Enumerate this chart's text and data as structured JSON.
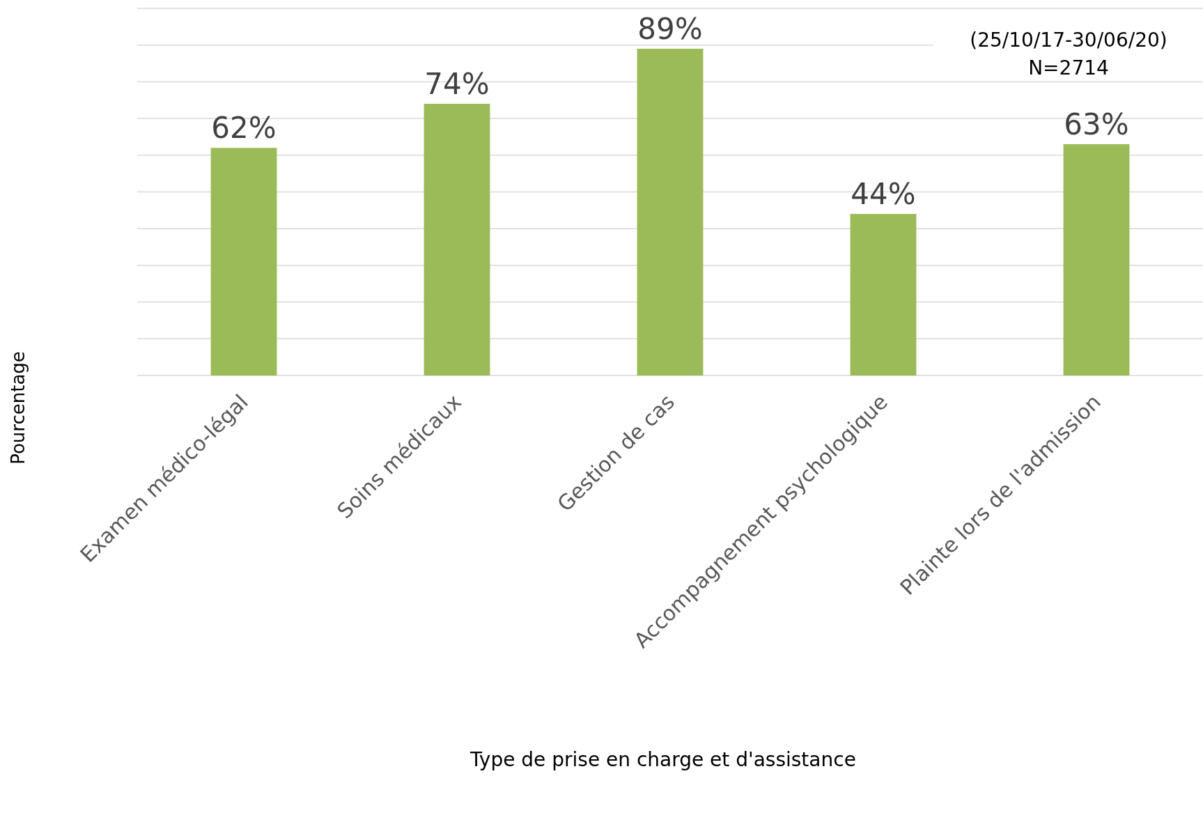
{
  "chart_data": {
    "type": "bar",
    "xlabel": "Type de prise en charge et d'assistance",
    "ylabel": "Pourcentage",
    "categories": [
      "Examen médico-légal",
      "Soins médicaux",
      "Gestion de cas",
      "Accompagnement psychologique",
      "Plainte lors de l'admission"
    ],
    "values": [
      62,
      74,
      89,
      44,
      63
    ],
    "value_labels": [
      "62%",
      "74%",
      "89%",
      "44%",
      "63%"
    ],
    "color": "#9bbb59",
    "ylim": [
      0,
      100
    ],
    "yticks": [
      {
        "value": 0,
        "label": null
      },
      {
        "value": 10,
        "label": null
      },
      {
        "value": 20,
        "label": null
      },
      {
        "value": 30,
        "label": null
      },
      {
        "value": 40,
        "label": null
      },
      {
        "value": 50,
        "label": null
      },
      {
        "value": 60,
        "label": null
      },
      {
        "value": 70,
        "label": null
      },
      {
        "value": 80,
        "label": null
      },
      {
        "value": 90,
        "label": null
      },
      {
        "value": 100,
        "label": null
      }
    ],
    "tick_labels": "x",
    "grid": "y",
    "annotations": [
      "(25/10/17-30/06/20)\nN=2714"
    ]
  }
}
